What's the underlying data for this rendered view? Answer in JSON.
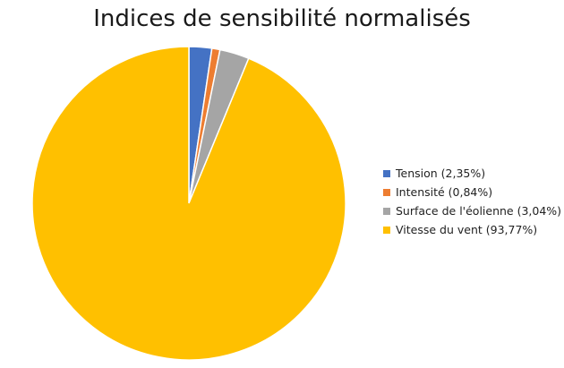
{
  "chart_data": {
    "type": "pie",
    "title": "Indices de sensibilité normalisés",
    "legend_position": "right",
    "slices": [
      {
        "label": "Tension (2,35%)",
        "value": 2.35,
        "color": "#4472C4"
      },
      {
        "label": "Intensité (0,84%)",
        "value": 0.84,
        "color": "#ED7D31"
      },
      {
        "label": "Surface de l'éolienne (3,04%)",
        "value": 3.04,
        "color": "#A5A5A5"
      },
      {
        "label": "Vitesse du vent (93,77%)",
        "value": 93.77,
        "color": "#FFC000"
      }
    ]
  }
}
